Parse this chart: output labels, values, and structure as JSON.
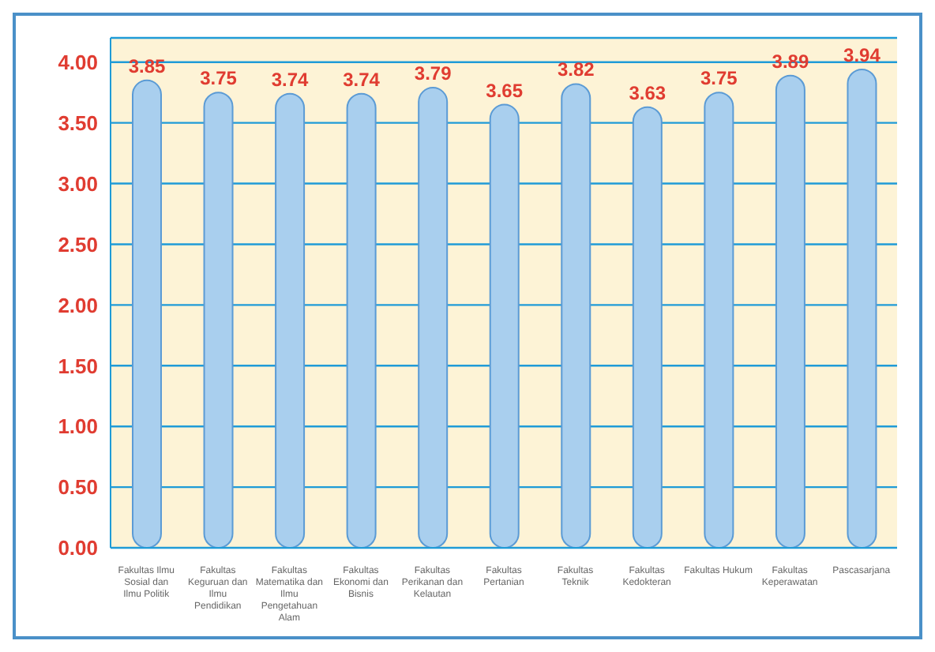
{
  "chart_data": {
    "type": "bar",
    "categories": [
      "Fakultas Ilmu Sosial dan Ilmu Politik",
      "Fakultas Keguruan dan Ilmu Pendidikan",
      "Fakultas Matematika dan Ilmu Pengetahuan Alam",
      "Fakultas Ekonomi dan Bisnis",
      "Fakultas Perikanan dan Kelautan",
      "Fakultas Pertanian",
      "Fakultas Teknik",
      "Fakultas Kedokteran",
      "Fakultas Hukum",
      "Fakultas Keperawatan",
      "Pascasarjana"
    ],
    "values": [
      3.85,
      3.75,
      3.74,
      3.74,
      3.79,
      3.65,
      3.82,
      3.63,
      3.75,
      3.89,
      3.94
    ],
    "color": "#a9cfee",
    "ylim": [
      0,
      4.2
    ],
    "yticks": [
      {
        "value": 0,
        "label": "0.00"
      },
      {
        "value": 0.5,
        "label": "0.50"
      },
      {
        "value": 1,
        "label": "1.00"
      },
      {
        "value": 1.5,
        "label": "1.50"
      },
      {
        "value": 2,
        "label": "2.00"
      },
      {
        "value": 2.5,
        "label": "2.50"
      },
      {
        "value": 3,
        "label": "3.00"
      },
      {
        "value": 3.5,
        "label": "3.50"
      },
      {
        "value": 4,
        "label": "4.00"
      }
    ],
    "grid": "y",
    "data_labels": true
  }
}
